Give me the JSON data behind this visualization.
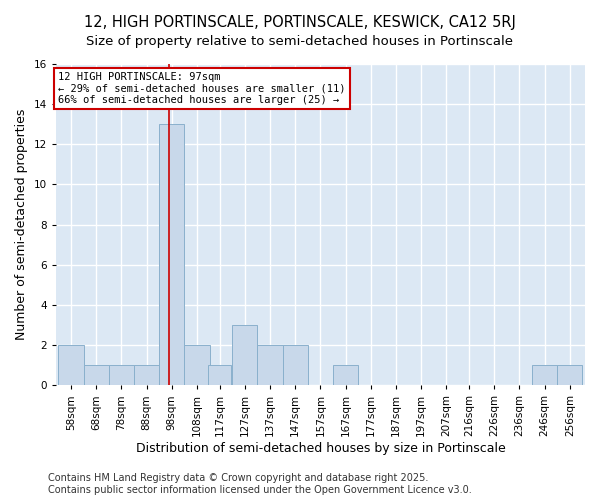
{
  "title": "12, HIGH PORTINSCALE, PORTINSCALE, KESWICK, CA12 5RJ",
  "subtitle": "Size of property relative to semi-detached houses in Portinscale",
  "xlabel": "Distribution of semi-detached houses by size in Portinscale",
  "ylabel": "Number of semi-detached properties",
  "bin_centers": [
    58,
    68,
    78,
    88,
    98,
    108,
    117,
    127,
    137,
    147,
    157,
    167,
    177,
    187,
    197,
    207,
    216,
    226,
    236,
    246,
    256
  ],
  "bin_widths": [
    10,
    10,
    10,
    10,
    10,
    10,
    9,
    10,
    10,
    10,
    10,
    10,
    10,
    10,
    10,
    10,
    9,
    10,
    10,
    10,
    10
  ],
  "bin_labels": [
    "58sqm",
    "68sqm",
    "78sqm",
    "88sqm",
    "98sqm",
    "108sqm",
    "117sqm",
    "127sqm",
    "137sqm",
    "147sqm",
    "157sqm",
    "167sqm",
    "177sqm",
    "187sqm",
    "197sqm",
    "207sqm",
    "216sqm",
    "226sqm",
    "236sqm",
    "246sqm",
    "256sqm"
  ],
  "heights": [
    2,
    1,
    1,
    1,
    13,
    2,
    1,
    3,
    2,
    2,
    0,
    1,
    0,
    0,
    0,
    0,
    0,
    0,
    0,
    1,
    1
  ],
  "bar_color": "#c8d8ea",
  "bar_edge_color": "#8ab0cc",
  "red_line_x": 97,
  "annotation_text": "12 HIGH PORTINSCALE: 97sqm\n← 29% of semi-detached houses are smaller (11)\n66% of semi-detached houses are larger (25) →",
  "annotation_box_color": "#ffffff",
  "annotation_box_edge_color": "#cc0000",
  "ylim": [
    0,
    16
  ],
  "yticks": [
    0,
    2,
    4,
    6,
    8,
    10,
    12,
    14,
    16
  ],
  "plot_bg_color": "#dce8f4",
  "figure_bg_color": "#ffffff",
  "grid_color": "#ffffff",
  "footer_line1": "Contains HM Land Registry data © Crown copyright and database right 2025.",
  "footer_line2": "Contains public sector information licensed under the Open Government Licence v3.0.",
  "title_fontsize": 10.5,
  "subtitle_fontsize": 9.5,
  "tick_fontsize": 7.5,
  "label_fontsize": 9,
  "footer_fontsize": 7
}
